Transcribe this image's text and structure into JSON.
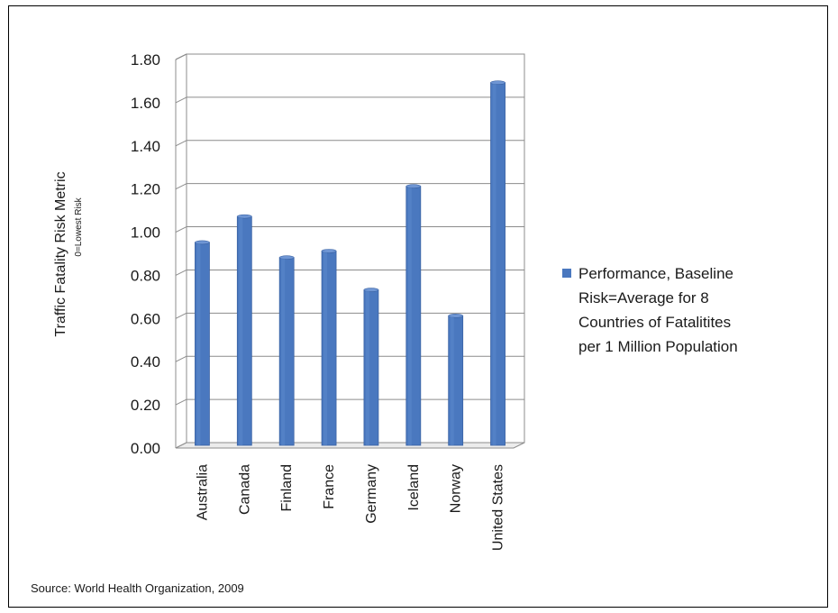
{
  "chart_data": {
    "type": "bar",
    "categories": [
      "Australia",
      "Canada",
      "Finland",
      "France",
      "Germany",
      "Iceland",
      "Norway",
      "United States"
    ],
    "series": [
      {
        "name_lines": [
          "Performance, Baseline",
          "Risk=Average for 8",
          "Countries of Fatalitites",
          "per 1 Million Population"
        ],
        "values": [
          0.94,
          1.06,
          0.87,
          0.9,
          0.72,
          1.2,
          0.6,
          1.68
        ],
        "color": "#4a78bf"
      }
    ],
    "ylabel": "Traffic Fatality  Risk Metric",
    "ylabel_sub": "0=Lowest Risk",
    "ylim": [
      0,
      1.8
    ],
    "yticks": [
      "0.00",
      "0.20",
      "0.40",
      "0.60",
      "0.80",
      "1.00",
      "1.20",
      "1.40",
      "1.60",
      "1.80"
    ],
    "grid": true,
    "legend_position": "right",
    "source": "Source: World Health Organization, 2009"
  }
}
